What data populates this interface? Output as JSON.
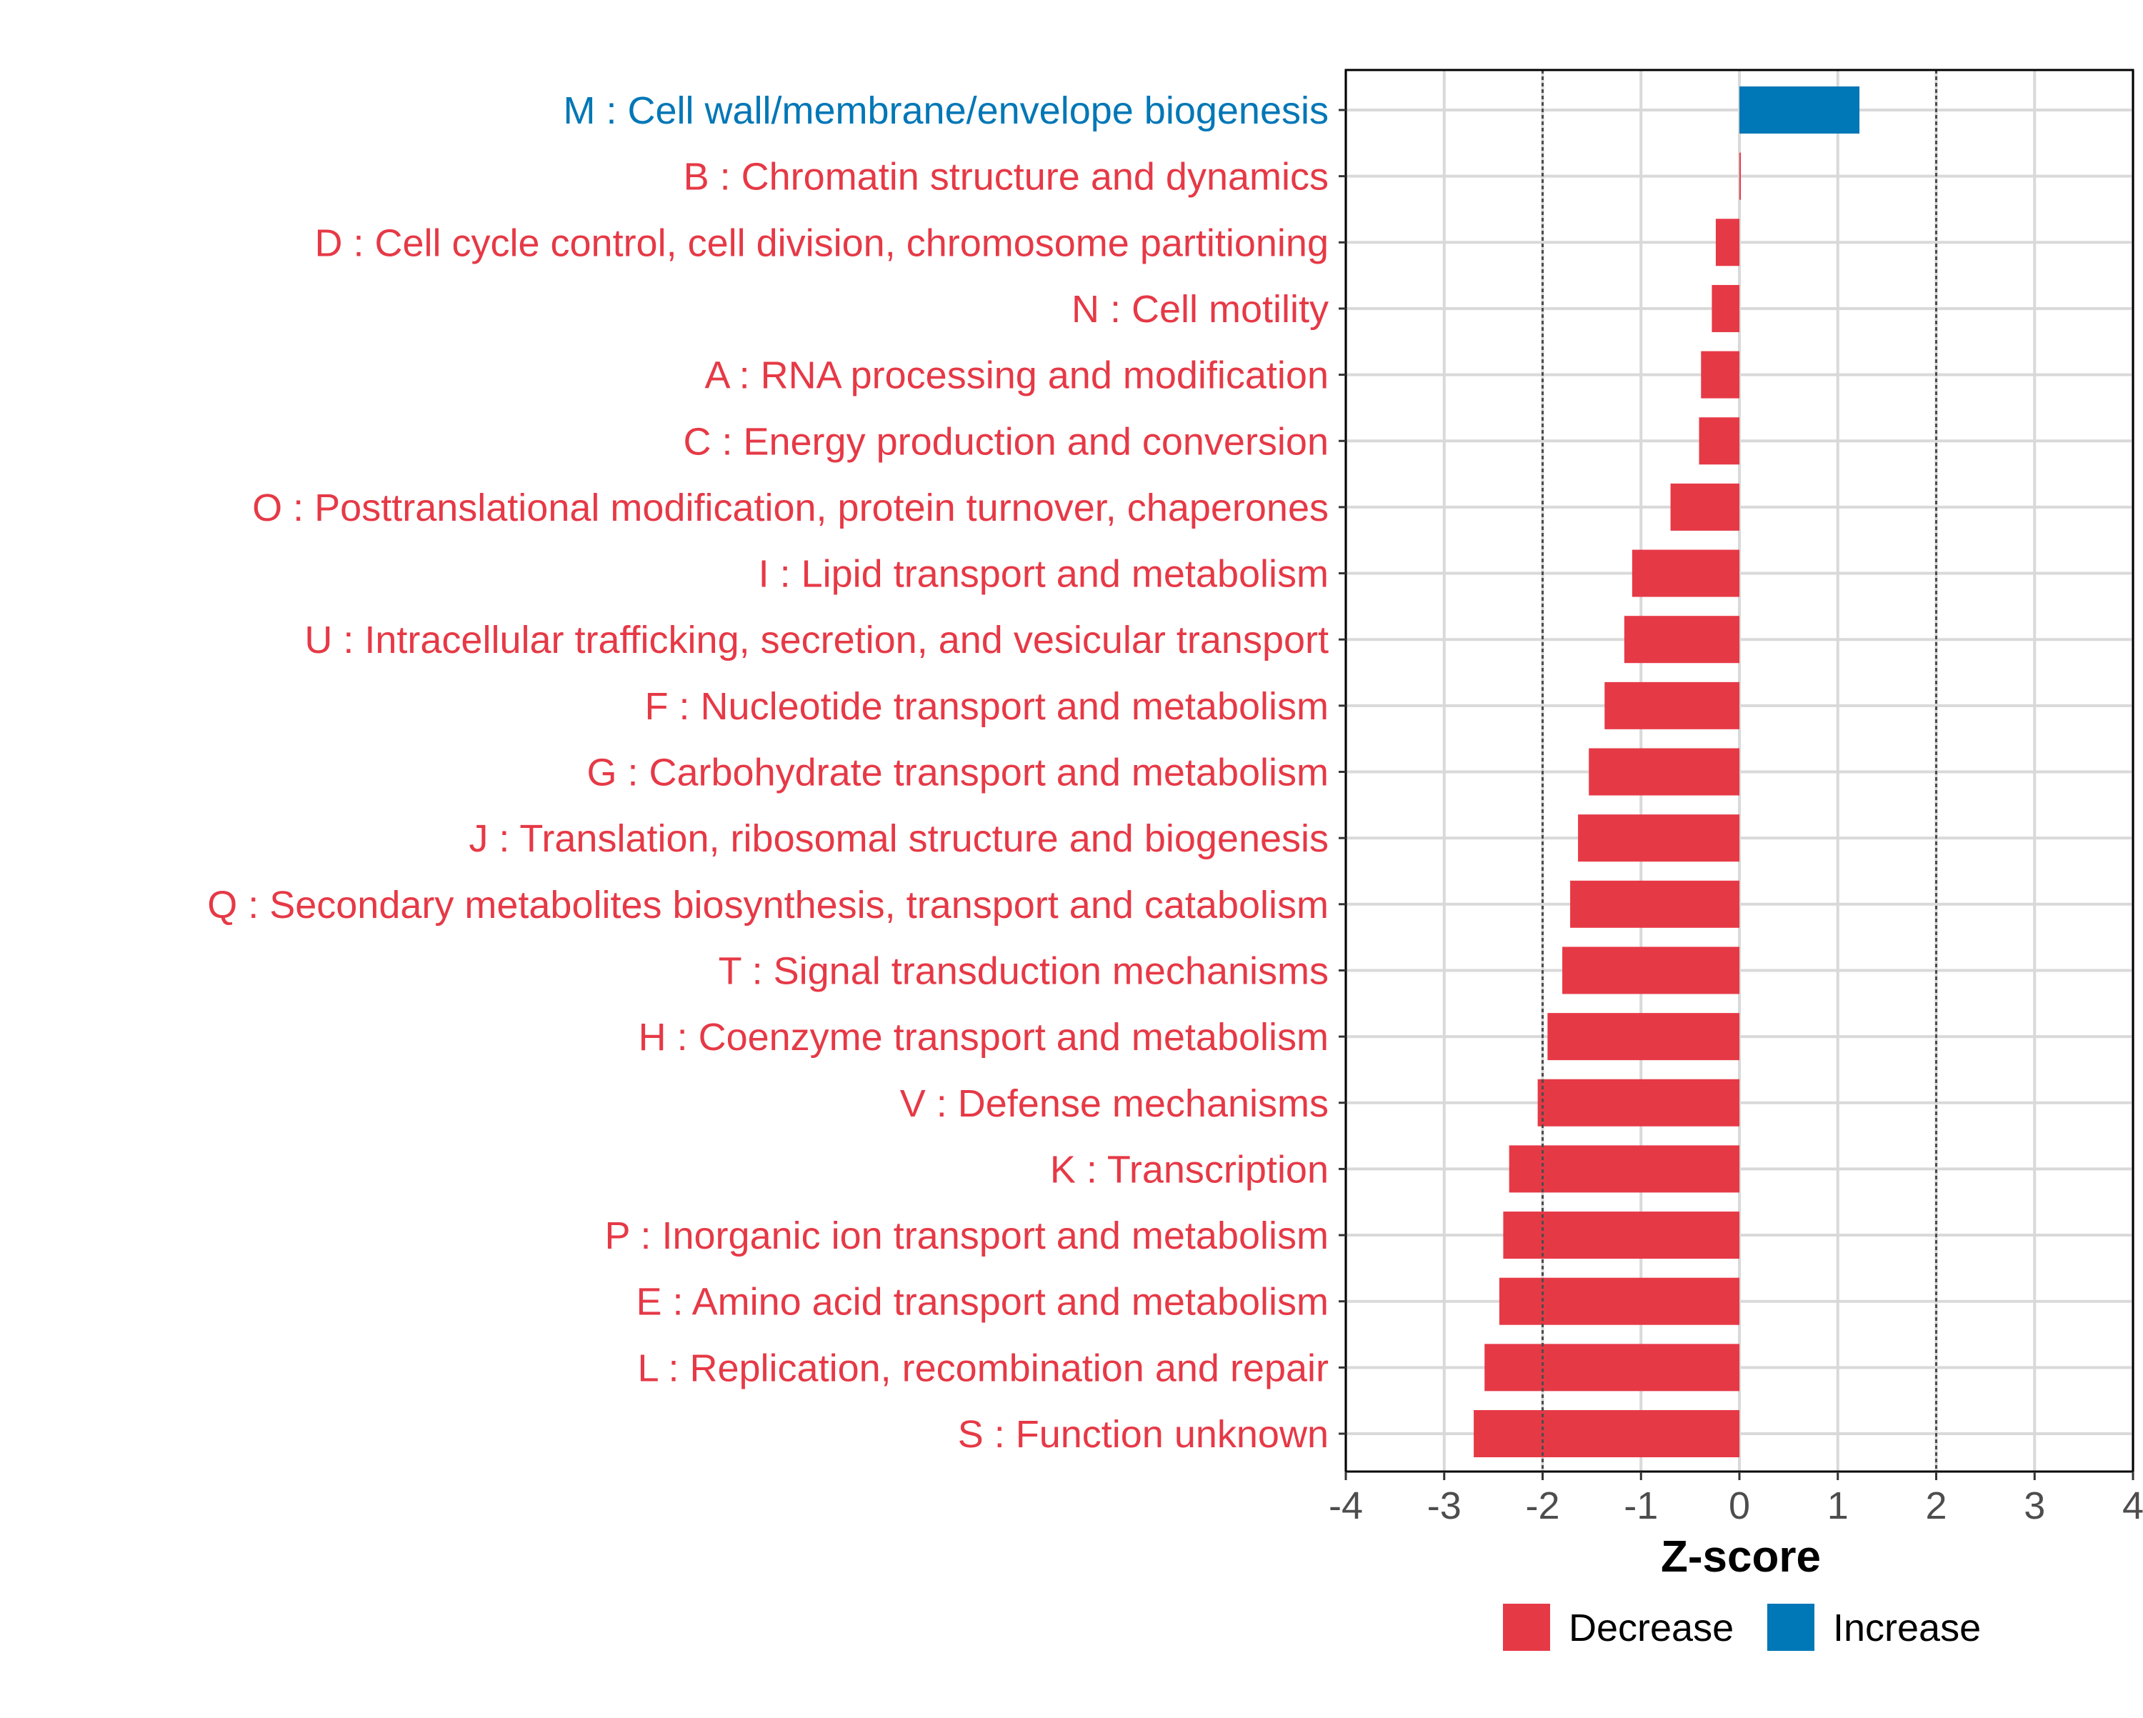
{
  "chart_data": {
    "type": "bar",
    "orientation": "horizontal",
    "title": "",
    "xlabel": "Z-score",
    "ylabel": "",
    "xlim": [
      -4,
      4
    ],
    "x_ticks": [
      -4,
      -3,
      -2,
      -1,
      0,
      1,
      2,
      3,
      4
    ],
    "x_tick_labels": [
      "-4",
      "-3",
      "-2",
      "-1",
      "0",
      "1",
      "2",
      "3",
      "4"
    ],
    "reference_lines": [
      -2,
      2
    ],
    "grid": true,
    "categories": [
      "M : Cell wall/membrane/envelope biogenesis",
      "B : Chromatin structure and dynamics",
      "D : Cell cycle control, cell division, chromosome partitioning",
      "N : Cell motility",
      "A : RNA processing and modification",
      "C : Energy production and conversion",
      "O : Posttranslational modification, protein turnover, chaperones",
      "I : Lipid transport and metabolism",
      "U : Intracellular trafficking, secretion, and vesicular transport",
      "F : Nucleotide transport and metabolism",
      "G : Carbohydrate transport and metabolism",
      "J : Translation, ribosomal structure and biogenesis",
      "Q : Secondary metabolites biosynthesis, transport and catabolism",
      "T : Signal transduction mechanisms",
      "H : Coenzyme transport and metabolism",
      "V : Defense mechanisms",
      "K : Transcription",
      "P : Inorganic ion transport and metabolism",
      "E : Amino acid transport and metabolism",
      "L : Replication, recombination and repair",
      "S : Function unknown"
    ],
    "values": [
      1.22,
      0.0,
      -0.24,
      -0.28,
      -0.39,
      -0.41,
      -0.7,
      -1.09,
      -1.17,
      -1.37,
      -1.53,
      -1.64,
      -1.72,
      -1.8,
      -1.95,
      -2.05,
      -2.34,
      -2.4,
      -2.44,
      -2.59,
      -2.7
    ],
    "groups": [
      "Increase",
      "Decrease",
      "Decrease",
      "Decrease",
      "Decrease",
      "Decrease",
      "Decrease",
      "Decrease",
      "Decrease",
      "Decrease",
      "Decrease",
      "Decrease",
      "Decrease",
      "Decrease",
      "Decrease",
      "Decrease",
      "Decrease",
      "Decrease",
      "Decrease",
      "Decrease",
      "Decrease"
    ],
    "legend": {
      "position": "bottom",
      "entries": [
        {
          "label": "Decrease",
          "color": "#E63946"
        },
        {
          "label": "Increase",
          "color": "#0077B6"
        }
      ]
    },
    "colors": {
      "Decrease": "#E63946",
      "Increase": "#0077B6",
      "grid": "#D9D9D9",
      "reference_line": "#4D4D4D",
      "axis": "#000000",
      "tick_label": "#4D4D4D"
    }
  }
}
